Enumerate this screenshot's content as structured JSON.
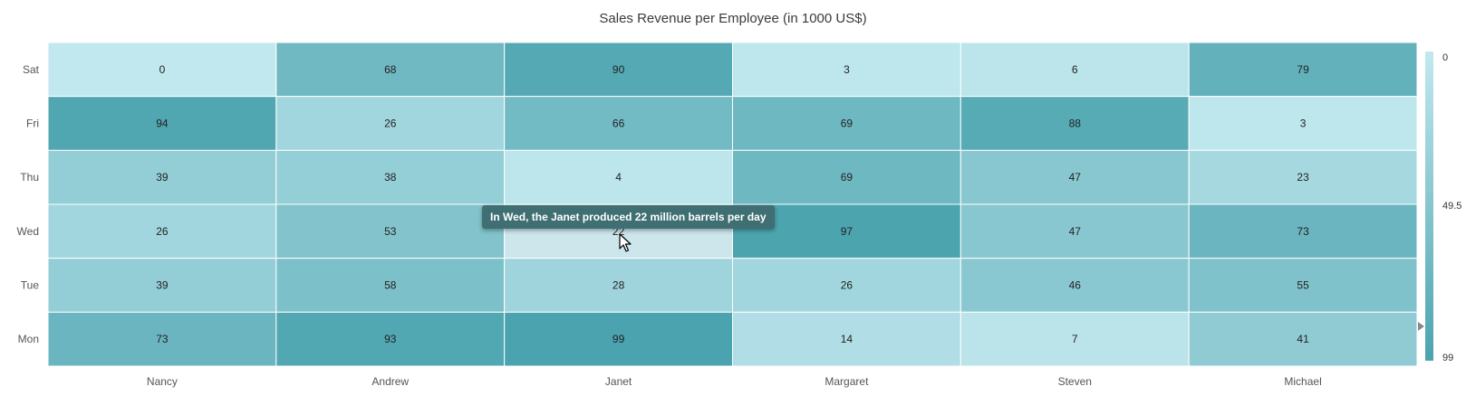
{
  "chart_data": {
    "type": "heatmap",
    "title": "Sales Revenue per Employee (in 1000 US$)",
    "x_categories": [
      "Nancy",
      "Andrew",
      "Janet",
      "Margaret",
      "Steven",
      "Michael"
    ],
    "y_categories": [
      "Sat",
      "Fri",
      "Thu",
      "Wed",
      "Tue",
      "Mon"
    ],
    "values": [
      [
        0,
        68,
        90,
        3,
        6,
        79
      ],
      [
        94,
        26,
        66,
        69,
        88,
        3
      ],
      [
        39,
        38,
        4,
        69,
        47,
        23
      ],
      [
        26,
        53,
        22,
        97,
        47,
        73
      ],
      [
        39,
        58,
        28,
        26,
        46,
        55
      ],
      [
        73,
        93,
        99,
        14,
        7,
        41
      ]
    ],
    "legend": {
      "min": 0,
      "mid": 49.5,
      "max": 99,
      "min_label": "0",
      "mid_label": "49.5",
      "max_label": "99",
      "color_low": "#c2e8ef",
      "color_high": "#4aa3ae",
      "placement": "right"
    },
    "highlighted_cell": {
      "x": "Janet",
      "y": "Wed",
      "value": 22
    },
    "pointer_value": 88
  },
  "tooltip": {
    "text": "In Wed, the Janet produced 22 million barrels per day",
    "background": "#3f6f72"
  },
  "colors": {
    "gridline": "#ffffff",
    "highlight": "#cce6ec",
    "pointer": "#888888"
  }
}
